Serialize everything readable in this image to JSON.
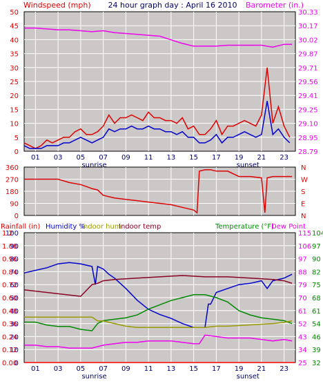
{
  "chart_data": [
    {
      "type": "line",
      "title": "24 hour graph day : April 16 2010",
      "left_axis_label": "Windspeed (mph)",
      "right_axis_label": "Barometer (in.)",
      "x_ticks": [
        "01",
        "03",
        "05",
        "07",
        "09",
        "11",
        "13",
        "15",
        "17",
        "19",
        "21",
        "23"
      ],
      "x_ticks_hours": [
        1,
        3,
        5,
        7,
        9,
        11,
        13,
        15,
        17,
        19,
        21,
        23
      ],
      "x_annotations": [
        {
          "text": "sunrise",
          "hour": 6.2
        },
        {
          "text": "sunset",
          "hour": 19.8
        }
      ],
      "x_range_hours": [
        0,
        24
      ],
      "left_ticks": [
        "0",
        "5",
        "10",
        "15",
        "20",
        "25",
        "30",
        "35",
        "40",
        "45",
        "50"
      ],
      "left_range": [
        0,
        50
      ],
      "right_ticks": [
        "28.79",
        "28.95",
        "29.10",
        "29.25",
        "29.41",
        "29.56",
        "29.71",
        "29.87",
        "30.02",
        "30.17",
        "30.33"
      ],
      "right_range": [
        28.79,
        30.33
      ],
      "grid": true,
      "series": [
        {
          "name": "Windspeed (mph)",
          "axis": "left",
          "color": "#dd0000",
          "x": [
            0,
            0.5,
            1,
            1.5,
            2,
            2.5,
            3,
            3.5,
            4,
            4.5,
            5,
            5.5,
            6,
            6.5,
            7,
            7.5,
            8,
            8.5,
            9,
            9.5,
            10,
            10.5,
            11,
            11.5,
            12,
            12.5,
            13,
            13.5,
            14,
            14.5,
            15,
            15.5,
            16,
            16.5,
            17,
            17.5,
            18,
            18.5,
            19,
            19.5,
            20,
            20.5,
            21,
            21.5,
            22,
            22.5,
            23,
            23.5
          ],
          "values": [
            3,
            2,
            1,
            2,
            4,
            3,
            4,
            5,
            5,
            7,
            8,
            6,
            6,
            7,
            9,
            13,
            10,
            12,
            12,
            13,
            12,
            11,
            14,
            12,
            12,
            11,
            11,
            10,
            12,
            8,
            9,
            6,
            6,
            8,
            11,
            6,
            9,
            9,
            10,
            11,
            10,
            9,
            13,
            30,
            10,
            16,
            9,
            5
          ]
        },
        {
          "name": "Wind (blue)",
          "axis": "left",
          "color": "#0000cc",
          "x": [
            0,
            0.5,
            1,
            1.5,
            2,
            2.5,
            3,
            3.5,
            4,
            4.5,
            5,
            5.5,
            6,
            6.5,
            7,
            7.5,
            8,
            8.5,
            9,
            9.5,
            10,
            10.5,
            11,
            11.5,
            12,
            12.5,
            13,
            13.5,
            14,
            14.5,
            15,
            15.5,
            16,
            16.5,
            17,
            17.5,
            18,
            18.5,
            19,
            19.5,
            20,
            20.5,
            21,
            21.5,
            22,
            22.5,
            23,
            23.5
          ],
          "values": [
            2,
            1,
            1,
            1,
            2,
            2,
            2,
            3,
            3,
            4,
            5,
            4,
            3,
            4,
            5,
            8,
            7,
            8,
            8,
            9,
            8,
            8,
            9,
            8,
            8,
            7,
            7,
            6,
            7,
            5,
            5,
            3,
            3,
            4,
            6,
            3,
            5,
            5,
            6,
            7,
            6,
            5,
            6,
            18,
            6,
            8,
            5,
            3
          ]
        },
        {
          "name": "Barometer (in.)",
          "axis": "right",
          "color": "#ee00ee",
          "x": [
            0,
            1,
            2,
            3,
            4,
            5,
            6,
            7,
            8,
            9,
            10,
            11,
            12,
            13,
            14,
            15,
            16,
            17,
            18,
            19,
            20,
            21,
            22,
            23,
            23.7
          ],
          "values": [
            30.15,
            30.15,
            30.14,
            30.13,
            30.13,
            30.12,
            30.11,
            30.12,
            30.1,
            30.09,
            30.08,
            30.07,
            30.06,
            30.02,
            29.98,
            29.95,
            29.95,
            29.95,
            29.96,
            29.96,
            29.96,
            29.96,
            29.94,
            29.97,
            29.97
          ]
        }
      ]
    },
    {
      "type": "line",
      "title": "",
      "left_ticks": [
        "0",
        "90",
        "180",
        "270",
        "360"
      ],
      "left_range": [
        0,
        360
      ],
      "right_ticks": [
        "N",
        "E",
        "S",
        "W",
        "N"
      ],
      "x_ticks": [],
      "x_range_hours": [
        0,
        24
      ],
      "grid": true,
      "series": [
        {
          "name": "Wind direction",
          "axis": "left",
          "color": "#dd0000",
          "x": [
            0,
            1,
            2,
            3,
            4,
            5,
            6,
            6.5,
            7,
            8,
            9,
            10,
            11,
            12,
            13,
            14,
            15,
            15.3,
            15.5,
            16,
            16.5,
            17,
            18,
            19,
            20,
            21,
            21.3,
            21.5,
            22,
            23,
            23.7
          ],
          "values": [
            270,
            270,
            270,
            270,
            245,
            230,
            200,
            190,
            150,
            130,
            120,
            110,
            100,
            90,
            80,
            60,
            40,
            20,
            330,
            340,
            340,
            330,
            330,
            290,
            290,
            280,
            20,
            280,
            290,
            290,
            290
          ]
        }
      ]
    },
    {
      "type": "line",
      "title": "",
      "left_labels": [
        {
          "text": "Rainfall (in)",
          "color": "#dd0000"
        },
        {
          "text": "Humidity %",
          "color": "#0000cc"
        },
        {
          "text": "Indoor hum",
          "color": "#999900"
        },
        {
          "text": "Indoor temp",
          "color": "#880022"
        }
      ],
      "right_labels": [
        {
          "text": "Temperature (°F)",
          "color": "#008800"
        },
        {
          "text": "Dew Point",
          "color": "#ee00ee"
        }
      ],
      "left_ticks_hum": [
        "0",
        "10",
        "20",
        "30",
        "40",
        "50",
        "60",
        "70",
        "80",
        "90",
        "100"
      ],
      "left_ticks_rain": [
        "0.00",
        "0.12",
        "0.24",
        "0.36",
        "0.48",
        "0.60",
        "0.72",
        "0.84",
        "0.96",
        "1.08",
        "1.2"
      ],
      "right_ticks_a": [
        "25",
        "34",
        "43",
        "52",
        "61",
        "70",
        "79",
        "88",
        "97",
        "106",
        "115"
      ],
      "right_ticks_b": [
        "32",
        "39",
        "46",
        "54",
        "61",
        "68",
        "75",
        "82",
        "90",
        "97",
        "104"
      ],
      "x_ticks": [
        "01",
        "03",
        "05",
        "07",
        "09",
        "11",
        "13",
        "15",
        "17",
        "19",
        "21",
        "23"
      ],
      "x_ticks_hours": [
        1,
        3,
        5,
        7,
        9,
        11,
        13,
        15,
        17,
        19,
        21,
        23
      ],
      "x_annotations": [
        {
          "text": "sunrise",
          "hour": 6.2
        },
        {
          "text": "sunset",
          "hour": 19.8
        }
      ],
      "x_range_hours": [
        0,
        24
      ],
      "left_range": [
        0,
        100
      ],
      "right_range": [
        25,
        115
      ],
      "grid": true,
      "series": [
        {
          "name": "Humidity %",
          "axis": "left",
          "color": "#0000cc",
          "x": [
            0,
            1,
            2,
            3,
            4,
            5,
            6,
            6.3,
            6.5,
            7,
            7.5,
            8,
            9,
            10,
            11,
            12,
            13,
            14,
            15,
            15.5,
            16,
            16.3,
            16.5,
            17,
            18,
            19,
            20,
            21,
            21.5,
            22,
            23,
            23.7
          ],
          "values": [
            69,
            71,
            73,
            76,
            77,
            76,
            74,
            60,
            74,
            72,
            68,
            65,
            57,
            48,
            41,
            37,
            34,
            30,
            27,
            27,
            27,
            45,
            45,
            54,
            57,
            60,
            61,
            63,
            57,
            63,
            65,
            68
          ]
        },
        {
          "name": "Temperature (°F)",
          "axis": "right",
          "color": "#008800",
          "x": [
            0,
            1,
            2,
            3,
            4,
            5,
            6,
            6.5,
            7,
            8,
            9,
            10,
            11,
            12,
            13,
            14,
            15,
            16,
            17,
            18,
            19,
            20,
            21,
            22,
            23,
            23.7
          ],
          "values": [
            53,
            53,
            51,
            50,
            50,
            48,
            47,
            52,
            54,
            55,
            56,
            58,
            62,
            65,
            68,
            70,
            72,
            72,
            70,
            67,
            61,
            58,
            56,
            55,
            54,
            52
          ]
        },
        {
          "name": "Indoor temp",
          "axis": "left",
          "color": "#880022",
          "x": [
            0,
            1,
            2,
            3,
            4,
            5,
            6,
            6.5,
            7,
            8,
            10,
            12,
            14,
            16,
            18,
            20,
            22,
            23,
            23.7
          ],
          "values": [
            56,
            55,
            54,
            53,
            52,
            51,
            60,
            61,
            63,
            64,
            65,
            66,
            67,
            66,
            66,
            65,
            64,
            63,
            61
          ]
        },
        {
          "name": "Indoor hum",
          "axis": "left",
          "color": "#999900",
          "x": [
            0,
            1,
            2,
            3,
            4,
            5,
            6,
            6.5,
            7,
            8,
            9,
            10,
            11,
            12,
            14,
            16,
            17,
            18,
            20,
            22,
            23,
            23.7
          ],
          "values": [
            35,
            35,
            35,
            35,
            35,
            35,
            35,
            32,
            32,
            30,
            28,
            27,
            27,
            27,
            27,
            27,
            28,
            28,
            29,
            30,
            31,
            32
          ]
        },
        {
          "name": "Dew Point",
          "axis": "right",
          "color": "#ee00ee",
          "x": [
            0,
            1,
            2,
            3,
            4,
            5,
            6,
            7,
            8,
            9,
            10,
            11,
            12,
            13,
            14,
            15,
            15.5,
            16,
            17,
            18,
            19,
            20,
            21,
            22,
            23,
            23.7
          ],
          "values": [
            37,
            37,
            36,
            36,
            35,
            35,
            35,
            37,
            38,
            39,
            39,
            40,
            40,
            40,
            39,
            38,
            38,
            44,
            43,
            42,
            42,
            42,
            41,
            40,
            41,
            40
          ]
        },
        {
          "name": "Rainfall (in)",
          "axis": "left",
          "color": "#ff0000",
          "x": [
            0,
            24
          ],
          "values": [
            0,
            0
          ]
        }
      ]
    }
  ],
  "chart1": {
    "title": "24 hour graph day : April 16 2010",
    "left_label": "Windspeed (mph)",
    "right_label": "Barometer (in.)",
    "sunrise": "sunrise",
    "sunset": "sunset"
  },
  "chart3": {
    "rain_label": "Rainfall (in)",
    "hum_label": "Humidity %",
    "indoor_hum_label": "Indoor hum",
    "indoor_temp_label": "Indoor temp",
    "temp_label": "Temperature (°F)",
    "dew_label": "Dew Point",
    "sunrise": "sunrise",
    "sunset": "sunset"
  },
  "colors": {
    "plot_bg": "#ccc8c8",
    "grid": "#ffffff",
    "wind": "#dd0000",
    "wind_avg": "#0000cc",
    "barometer": "#ee00ee",
    "direction": "#dd0000",
    "humidity": "#0000cc",
    "temperature": "#008800",
    "indoor_temp": "#880022",
    "indoor_hum": "#999900",
    "dew_point": "#ee00ee",
    "rain": "#ff0000"
  }
}
